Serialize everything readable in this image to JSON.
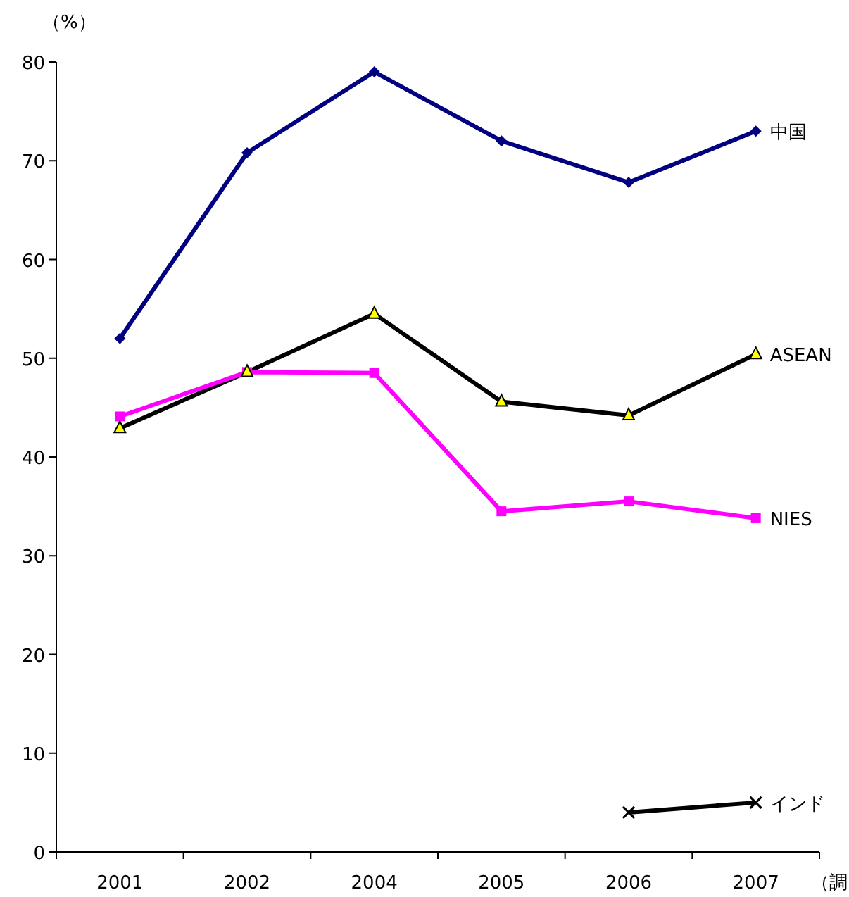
{
  "chart_data": {
    "type": "line",
    "ylabel": "（%）",
    "xlabel": "（調",
    "categories": [
      "2001",
      "2002",
      "2004",
      "2005",
      "2006",
      "2007"
    ],
    "ylim": [
      0,
      80
    ],
    "yticks": [
      0,
      10,
      20,
      30,
      40,
      50,
      60,
      70,
      80
    ],
    "grid": false,
    "series": [
      {
        "name": "中国",
        "color": "#000080",
        "marker": "diamond",
        "values": [
          52,
          70.8,
          79,
          72,
          67.8,
          73
        ]
      },
      {
        "name": "ASEAN",
        "color": "#000000",
        "marker": "triangle",
        "values": [
          42.9,
          48.6,
          54.5,
          45.6,
          44.2,
          50.4
        ]
      },
      {
        "name": "NIES",
        "color": "#ff00ff",
        "marker": "square",
        "values": [
          44.1,
          48.6,
          48.5,
          34.5,
          35.5,
          33.8
        ]
      },
      {
        "name": "インド",
        "color": "#000000",
        "marker": "cross",
        "values": [
          null,
          null,
          null,
          null,
          4.0,
          5.0
        ]
      }
    ]
  }
}
